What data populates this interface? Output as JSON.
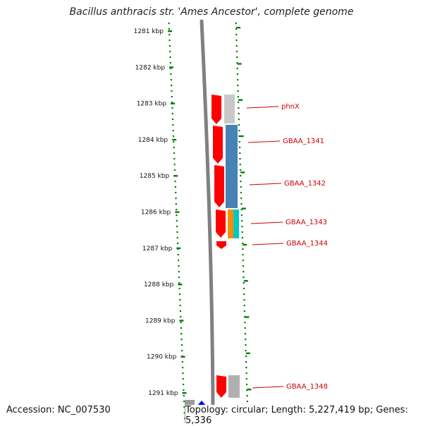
{
  "title": "Bacillus anthracis str. 'Ames Ancestor', complete genome",
  "accession": "Accession: NC_007530",
  "topology": "Topology: circular; Length: 5,227,419 bp; Genes: 5,336",
  "ruler": {
    "unit": "kbp",
    "ticks": [
      {
        "kbp": 1281,
        "label": "1281 kbp"
      },
      {
        "kbp": 1282,
        "label": "1282 kbp"
      },
      {
        "kbp": 1283,
        "label": "1283 kbp"
      },
      {
        "kbp": 1284,
        "label": "1284 kbp"
      },
      {
        "kbp": 1285,
        "label": "1285 kbp"
      },
      {
        "kbp": 1286,
        "label": "1286 kbp"
      },
      {
        "kbp": 1287,
        "label": "1287 kbp"
      },
      {
        "kbp": 1288,
        "label": "1288 kbp"
      },
      {
        "kbp": 1289,
        "label": "1289 kbp"
      },
      {
        "kbp": 1290,
        "label": "1290 kbp"
      },
      {
        "kbp": 1291,
        "label": "1291 kbp"
      }
    ]
  },
  "genes": [
    {
      "name": "phnX",
      "start_kbp": 1282.95,
      "end_kbp": 1283.75,
      "color": "#c8c8c8"
    },
    {
      "name": "GBAA_1341",
      "start_kbp": 1283.75,
      "end_kbp": 1286.0,
      "color": "#4682b4"
    },
    {
      "name": "GBAA_1342",
      "start_kbp": 1283.75,
      "end_kbp": 1286.0,
      "color": "#4682b4"
    },
    {
      "name": "GBAA_1343",
      "start_kbp": 1286.0,
      "end_kbp": 1286.75,
      "color": "#ff8c00"
    },
    {
      "name": "GBAA_1344",
      "start_kbp": 1286.0,
      "end_kbp": 1286.75,
      "color": "#00c8c8"
    },
    {
      "name": "GBAA_1348",
      "start_kbp": 1290.5,
      "end_kbp": 1291.1,
      "color": "#b0b0b0"
    }
  ],
  "colors": {
    "tick": "#008000",
    "label_line": "#cc0000",
    "cds": "#ff0000",
    "backbone": "#808080",
    "blue_feature": "#0000ff"
  }
}
